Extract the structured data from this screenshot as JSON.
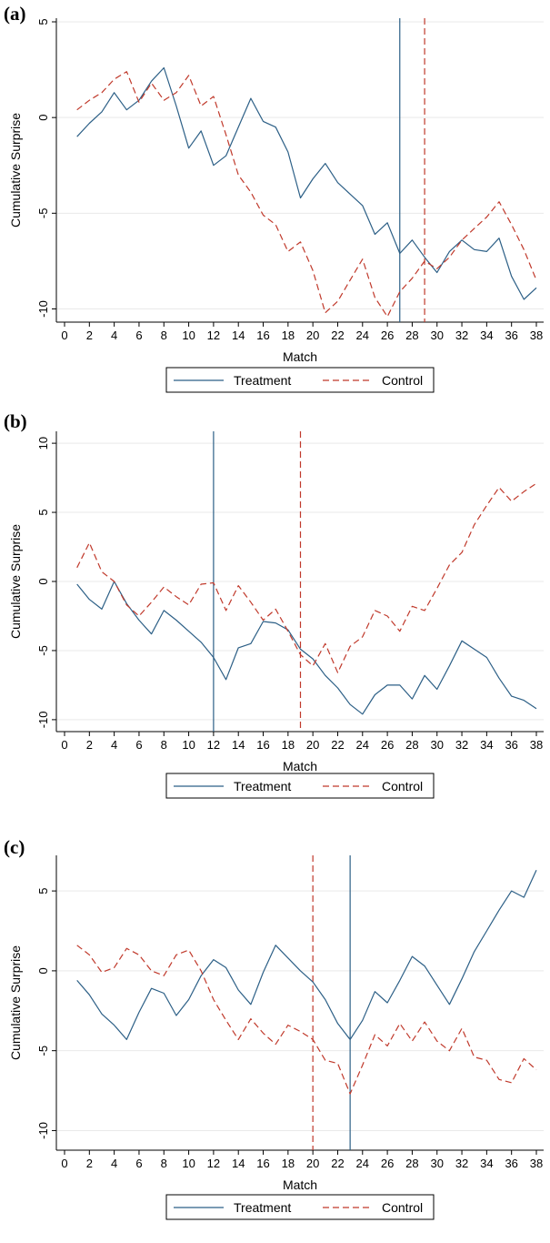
{
  "colors": {
    "treatment": "#2c5f86",
    "control": "#c0392b",
    "grid": "#e9e9e9",
    "axis": "#000000"
  },
  "chart_data": [
    {
      "type": "line",
      "panel_label": "(a)",
      "xlabel": "Match",
      "ylabel": "Cumulative Surprise",
      "xlim": [
        0,
        38
      ],
      "ylim": [
        -10.5,
        5
      ],
      "xticks": [
        0,
        2,
        4,
        6,
        8,
        10,
        12,
        14,
        16,
        18,
        20,
        22,
        24,
        26,
        28,
        30,
        32,
        34,
        36,
        38
      ],
      "yticks": [
        -10,
        -5,
        0,
        5
      ],
      "grid": true,
      "legend_position": "bottom",
      "x": [
        1,
        2,
        3,
        4,
        5,
        6,
        7,
        8,
        9,
        10,
        11,
        12,
        13,
        14,
        15,
        16,
        17,
        18,
        19,
        20,
        21,
        22,
        23,
        24,
        25,
        26,
        27,
        28,
        29,
        30,
        31,
        32,
        33,
        34,
        35,
        36,
        37,
        38
      ],
      "series": [
        {
          "name": "Treatment",
          "style": "solid",
          "values": [
            -1.0,
            -0.3,
            0.3,
            1.3,
            0.4,
            0.9,
            1.9,
            2.6,
            0.6,
            -1.6,
            -0.7,
            -2.5,
            -2.0,
            -0.5,
            1.0,
            -0.2,
            -0.5,
            -1.8,
            -4.2,
            -3.2,
            -2.4,
            -3.4,
            -4.0,
            -4.6,
            -6.1,
            -5.5,
            -7.1,
            -6.4,
            -7.3,
            -8.1,
            -7.0,
            -6.4,
            -6.9,
            -7.0,
            -6.3,
            -8.3,
            -9.5,
            -8.9
          ]
        },
        {
          "name": "Control",
          "style": "dashed",
          "values": [
            0.4,
            0.9,
            1.3,
            2.0,
            2.4,
            0.8,
            1.8,
            0.9,
            1.3,
            2.2,
            0.6,
            1.1,
            -0.9,
            -3.0,
            -3.9,
            -5.1,
            -5.6,
            -7.0,
            -6.5,
            -8.0,
            -10.2,
            -9.6,
            -8.5,
            -7.4,
            -9.4,
            -10.4,
            -9.1,
            -8.4,
            -7.5,
            -7.9,
            -7.3,
            -6.4,
            -5.8,
            -5.2,
            -4.4,
            -5.6,
            -6.9,
            -8.5
          ]
        }
      ],
      "vlines": [
        {
          "series": "Treatment",
          "x": 27
        },
        {
          "series": "Control",
          "x": 29
        }
      ]
    },
    {
      "type": "line",
      "panel_label": "(b)",
      "xlabel": "Match",
      "ylabel": "Cumulative Surprise",
      "xlim": [
        0,
        38
      ],
      "ylim": [
        -10.6,
        10.6
      ],
      "xticks": [
        0,
        2,
        4,
        6,
        8,
        10,
        12,
        14,
        16,
        18,
        20,
        22,
        24,
        26,
        28,
        30,
        32,
        34,
        36,
        38
      ],
      "yticks": [
        -10,
        -5,
        0,
        5,
        10
      ],
      "grid": true,
      "legend_position": "bottom",
      "x": [
        1,
        2,
        3,
        4,
        5,
        6,
        7,
        8,
        9,
        10,
        11,
        12,
        13,
        14,
        15,
        16,
        17,
        18,
        19,
        20,
        21,
        22,
        23,
        24,
        25,
        26,
        27,
        28,
        29,
        30,
        31,
        32,
        33,
        34,
        35,
        36,
        37,
        38
      ],
      "series": [
        {
          "name": "Treatment",
          "style": "solid",
          "values": [
            -0.2,
            -1.3,
            -2.0,
            0.0,
            -1.6,
            -2.8,
            -3.8,
            -2.1,
            -2.8,
            -3.6,
            -4.4,
            -5.5,
            -7.1,
            -4.8,
            -4.5,
            -2.9,
            -3.0,
            -3.5,
            -4.9,
            -5.6,
            -6.8,
            -7.7,
            -8.9,
            -9.6,
            -8.2,
            -7.5,
            -7.5,
            -8.5,
            -6.8,
            -7.8,
            -6.1,
            -4.3,
            -4.9,
            -5.5,
            -7.0,
            -8.3,
            -8.6,
            -9.2
          ]
        },
        {
          "name": "Control",
          "style": "dashed",
          "values": [
            1.0,
            2.8,
            0.7,
            0.0,
            -1.7,
            -2.5,
            -1.5,
            -0.4,
            -1.1,
            -1.7,
            -0.2,
            -0.1,
            -2.1,
            -0.3,
            -1.5,
            -2.8,
            -2.0,
            -3.6,
            -5.3,
            -6.1,
            -4.5,
            -6.6,
            -4.7,
            -4.0,
            -2.1,
            -2.5,
            -3.6,
            -1.8,
            -2.1,
            -0.5,
            1.2,
            2.1,
            4.1,
            5.5,
            6.8,
            5.8,
            6.5,
            7.1
          ]
        }
      ],
      "vlines": [
        {
          "series": "Treatment",
          "x": 12
        },
        {
          "series": "Control",
          "x": 19
        }
      ]
    },
    {
      "type": "line",
      "panel_label": "(c)",
      "xlabel": "Match",
      "ylabel": "Cumulative Surprise",
      "xlim": [
        0,
        38
      ],
      "ylim": [
        -11,
        7
      ],
      "xticks": [
        0,
        2,
        4,
        6,
        8,
        10,
        12,
        14,
        16,
        18,
        20,
        22,
        24,
        26,
        28,
        30,
        32,
        34,
        36,
        38
      ],
      "yticks": [
        -10,
        -5,
        0,
        5
      ],
      "grid": true,
      "legend_position": "bottom",
      "x": [
        1,
        2,
        3,
        4,
        5,
        6,
        7,
        8,
        9,
        10,
        11,
        12,
        13,
        14,
        15,
        16,
        17,
        18,
        19,
        20,
        21,
        22,
        23,
        24,
        25,
        26,
        27,
        28,
        29,
        30,
        31,
        32,
        33,
        34,
        35,
        36,
        37,
        38
      ],
      "series": [
        {
          "name": "Treatment",
          "style": "solid",
          "values": [
            -0.6,
            -1.5,
            -2.7,
            -3.4,
            -4.3,
            -2.6,
            -1.1,
            -1.4,
            -2.8,
            -1.8,
            -0.3,
            0.7,
            0.2,
            -1.2,
            -2.1,
            -0.1,
            1.6,
            0.8,
            0.0,
            -0.7,
            -1.8,
            -3.3,
            -4.3,
            -3.1,
            -1.3,
            -2.0,
            -0.6,
            0.9,
            0.3,
            -0.9,
            -2.1,
            -0.5,
            1.2,
            2.5,
            3.8,
            5.0,
            4.6,
            6.3
          ]
        },
        {
          "name": "Control",
          "style": "dashed",
          "values": [
            1.6,
            1.0,
            -0.1,
            0.2,
            1.4,
            1.0,
            0.0,
            -0.3,
            1.0,
            1.3,
            0.0,
            -1.8,
            -3.1,
            -4.3,
            -3.0,
            -3.9,
            -4.6,
            -3.4,
            -3.8,
            -4.3,
            -5.6,
            -5.8,
            -7.7,
            -5.9,
            -4.0,
            -4.7,
            -3.3,
            -4.4,
            -3.2,
            -4.4,
            -5.0,
            -3.6,
            -5.4,
            -5.6,
            -6.8,
            -7.0,
            -5.5,
            -6.2
          ]
        }
      ],
      "vlines": [
        {
          "series": "Control",
          "x": 20
        },
        {
          "series": "Treatment",
          "x": 23
        }
      ]
    }
  ]
}
